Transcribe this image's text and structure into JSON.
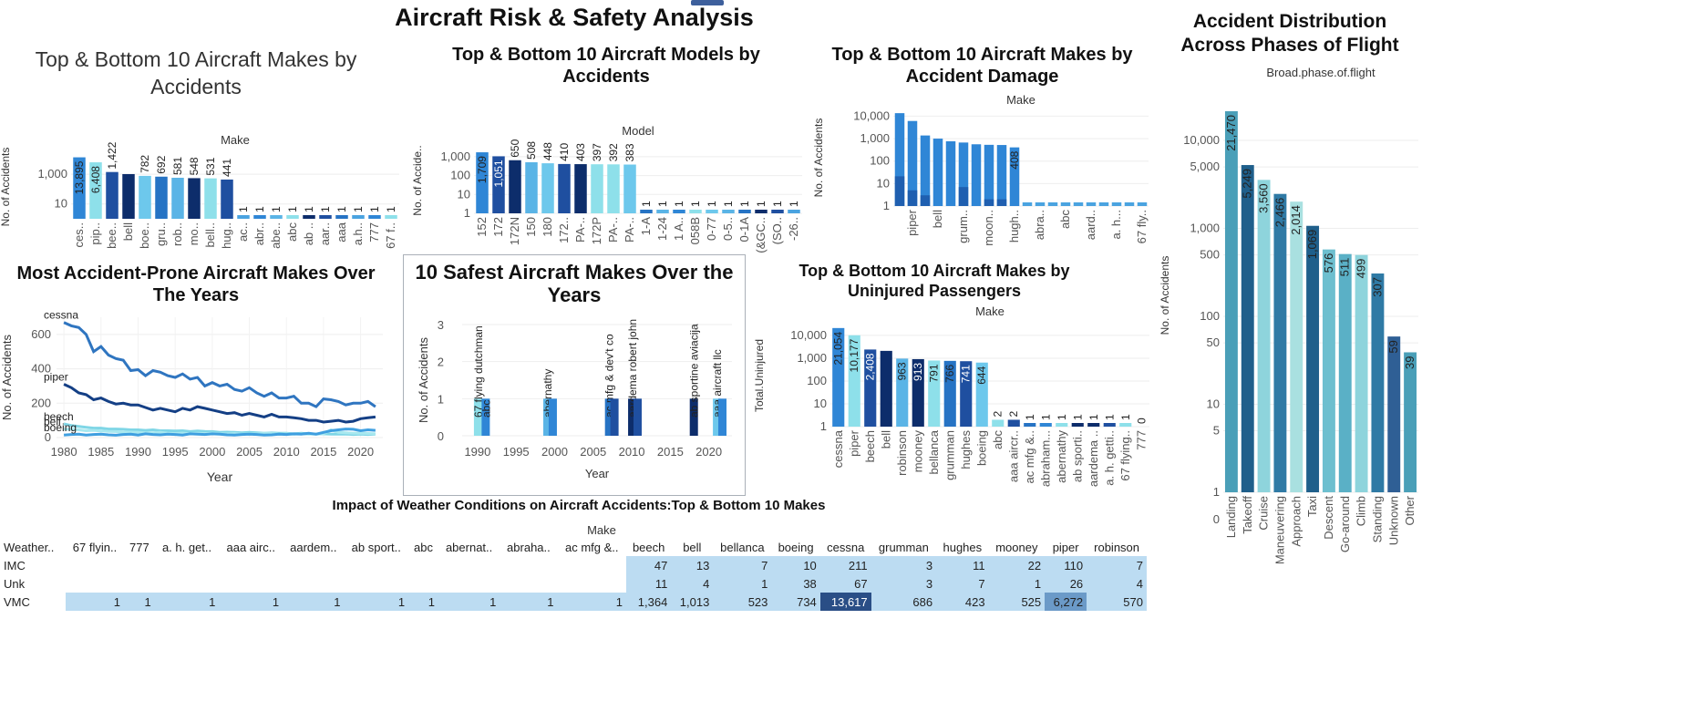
{
  "dashboard_title": "Aircraft Risk & Safety Analysis",
  "charts": {
    "makes_accidents": {
      "title": "Top &  Bottom 10 Aircraft Makes by Accidents",
      "axis_header": "Make",
      "ylabel": "No. of Accidents",
      "yticks": [
        "10",
        "1,000"
      ],
      "color_a": "#2f86d6",
      "color_b": "#0d2d6b",
      "color_c": "#8ee0ea"
    },
    "models_accidents": {
      "title": "Top & Bottom  10 Aircraft Models by Accidents",
      "axis_header": "Model",
      "ylabel": "No. of Accide..",
      "yticks": [
        "1",
        "10",
        "100",
        "1,000"
      ]
    },
    "makes_damage": {
      "title": "Top & Bottom 10 Aircraft Makes by Accident Damage",
      "axis_header": "Make",
      "ylabel": "No. of Accidents",
      "yticks": [
        "1",
        "10",
        "100",
        "1,000",
        "10,000"
      ]
    },
    "phases": {
      "title_line1": "Accident Distribution",
      "title_line2": "Across Phases of Flight",
      "axis_header": "Broad.phase.of.flight",
      "ylabel": "No. of Accidents",
      "yticks": [
        "0",
        "1",
        "5",
        "10",
        "50",
        "100",
        "500",
        "1,000",
        "5,000",
        "10,000"
      ]
    },
    "prone_years": {
      "title": "Most Accident-Prone Aircraft Makes Over  The Years",
      "ylabel": "No. of Accidents",
      "xlabel": "Year",
      "yticks": [
        "0",
        "200",
        "400",
        "600"
      ],
      "xticks": [
        "1980",
        "1985",
        "1990",
        "1995",
        "2000",
        "2005",
        "2010",
        "2015",
        "2020"
      ]
    },
    "safest_years": {
      "title": "10 Safest Aircraft Makes Over the Years",
      "ylabel": "No. of Accidents",
      "xlabel": "Year",
      "yticks": [
        "0",
        "1",
        "2",
        "3"
      ],
      "xticks": [
        "1990",
        "1995",
        "2000",
        "2005",
        "2010",
        "2015",
        "2020"
      ]
    },
    "uninjured": {
      "title": "Top & Bottom 10 Aircraft Makes by Uninjured Passengers",
      "axis_header": "Make",
      "ylabel": "Total.Uninjured",
      "yticks": [
        "1",
        "10",
        "100",
        "1,000",
        "10,000"
      ]
    },
    "weather": {
      "title": "Impact of Weather Conditions on Aircraft Accidents:Top & Bottom 10 Makes",
      "axis_header": "Make",
      "corner": "Weather..",
      "columns": [
        "67 flyin..",
        "777",
        "a. h. get..",
        "aaa airc..",
        "aardem..",
        "ab sport..",
        "abc",
        "abernat..",
        "abraha..",
        "ac mfg &..",
        "beech",
        "bell",
        "bellanca",
        "boeing",
        "cessna",
        "grumman",
        "hughes",
        "mooney",
        "piper",
        "robinson"
      ],
      "rows": [
        {
          "label": "IMC",
          "values": [
            "",
            "",
            "",
            "",
            "",
            "",
            "",
            "",
            "",
            "",
            "47",
            "13",
            "7",
            "10",
            "211",
            "3",
            "11",
            "22",
            "110",
            "7"
          ]
        },
        {
          "label": "Unk",
          "values": [
            "",
            "",
            "",
            "",
            "",
            "",
            "",
            "",
            "",
            "",
            "11",
            "4",
            "1",
            "38",
            "67",
            "3",
            "7",
            "1",
            "26",
            "4"
          ]
        },
        {
          "label": "VMC",
          "values": [
            "1",
            "1",
            "1",
            "1",
            "1",
            "1",
            "1",
            "1",
            "1",
            "1",
            "1,364",
            "1,013",
            "523",
            "734",
            "13,617",
            "686",
            "423",
            "525",
            "6,272",
            "570"
          ]
        }
      ]
    }
  },
  "chart_data": [
    {
      "type": "bar",
      "title": "Top &  Bottom 10 Aircraft Makes by Accidents",
      "xlabel": "Make",
      "ylabel": "No. of Accidents",
      "scale": "log",
      "categories": [
        "ces..",
        "pip..",
        "bee..",
        "bell",
        "boe..",
        "gru..",
        "rob..",
        "mo..",
        "bell..",
        "hug..",
        "ac..",
        "abr..",
        "abe..",
        "abc",
        "ab ..",
        "aar..",
        "aaa",
        "a.h..",
        "777",
        "67 f.."
      ],
      "values": [
        13895,
        6408,
        1422,
        1030,
        782,
        692,
        581,
        548,
        531,
        441,
        1,
        1,
        1,
        1,
        1,
        1,
        1,
        1,
        1,
        1
      ],
      "labels": [
        "13,895",
        "6,408",
        "1,422",
        "",
        "782",
        "692",
        "581",
        "548",
        "531",
        "441",
        "1",
        "1",
        "1",
        "1",
        "1",
        "1",
        "1",
        "1",
        "1",
        "1"
      ],
      "colors": [
        "#2f86d6",
        "#8ee0ea",
        "#1f4fa0",
        "#0d2d6b",
        "#6dc8ec",
        "#2673c4",
        "#5ab4e6",
        "#0d2d6b",
        "#8ee0ea",
        "#1f4fa0",
        "#4aa3e0",
        "#2f86d6",
        "#5ab4e6",
        "#8ee0ea",
        "#0d2d6b",
        "#1f4fa0",
        "#2673c4",
        "#4aa3e0",
        "#2f86d6",
        "#8ee0ea"
      ]
    },
    {
      "type": "bar",
      "title": "Top & Bottom  10 Aircraft Models by Accidents",
      "xlabel": "Model",
      "ylabel": "No. of Accide..",
      "scale": "log",
      "categories": [
        "152",
        "172",
        "172N",
        "150",
        "180",
        "172..",
        "PA-..",
        "172P",
        "PA-..",
        "PA-..",
        "1-A",
        "1-24",
        "1 A..",
        "058B",
        "0-77",
        "0-5..",
        "0-1A",
        "(&GC..",
        "(SO..",
        "-26.."
      ],
      "values": [
        1709,
        1051,
        650,
        508,
        448,
        410,
        403,
        397,
        392,
        383,
        1,
        1,
        1,
        1,
        1,
        1,
        1,
        1,
        1,
        1
      ],
      "labels": [
        "1,709",
        "1,051",
        "650",
        "508",
        "448",
        "410",
        "403",
        "397",
        "392",
        "383",
        "1",
        "1",
        "1",
        "1",
        "1",
        "1",
        "1",
        "1",
        "1",
        "1"
      ],
      "colors": [
        "#2f86d6",
        "#1f4fa0",
        "#0d2d6b",
        "#5ab4e6",
        "#6dc8ec",
        "#1f4fa0",
        "#0d2d6b",
        "#8ee0ea",
        "#8ee0ea",
        "#6dc8ec",
        "#2673c4",
        "#5ab4e6",
        "#2f86d6",
        "#8ee0ea",
        "#6dc8ec",
        "#5ab4e6",
        "#2673c4",
        "#0d2d6b",
        "#1f4fa0",
        "#4aa3e0"
      ]
    },
    {
      "type": "bar",
      "title": "Top & Bottom 10 Aircraft Makes by Accident Damage",
      "xlabel": "Make",
      "ylabel": "No. of Accidents",
      "scale": "log",
      "categories": [
        "",
        "piper",
        "",
        "bell",
        "",
        "grum..",
        "",
        "moon..",
        "",
        "hugh..",
        "",
        "abra..",
        "",
        "abc",
        "",
        "aard..",
        "",
        "a. h...",
        "",
        "67 fly.."
      ],
      "values": [
        13600,
        6100,
        1380,
        1000,
        760,
        670,
        560,
        530,
        520,
        408,
        1,
        1,
        1,
        1,
        1,
        1,
        1,
        1,
        1,
        1
      ],
      "secondary_values": [
        21,
        5,
        3,
        0,
        1,
        7,
        0,
        2,
        2,
        0,
        0,
        0,
        0,
        0,
        0,
        0,
        0,
        0,
        0,
        0
      ],
      "labels": [
        "",
        "",
        "",
        "",
        "",
        "",
        "",
        "",
        "",
        "408",
        "",
        "",
        "",
        "",
        "",
        "",
        "",
        "",
        "",
        ""
      ],
      "colors": [
        "#2f86d6",
        "#2f86d6",
        "#2f86d6",
        "#2f86d6",
        "#2f86d6",
        "#2f86d6",
        "#2f86d6",
        "#2f86d6",
        "#2f86d6",
        "#2f86d6",
        "#4aa3e0",
        "#4aa3e0",
        "#4aa3e0",
        "#4aa3e0",
        "#4aa3e0",
        "#4aa3e0",
        "#4aa3e0",
        "#4aa3e0",
        "#4aa3e0",
        "#4aa3e0"
      ]
    },
    {
      "type": "bar",
      "title": "Accident Distribution Across Phases of Flight",
      "xlabel": "Broad.phase.of.flight",
      "ylabel": "No. of Accidents",
      "scale": "log",
      "categories": [
        "Landing",
        "Takeoff",
        "Cruise",
        "Maneuvering",
        "Approach",
        "Taxi",
        "Descent",
        "Go-around",
        "Climb",
        "Standing",
        "Unknown",
        "Other"
      ],
      "values": [
        21470,
        5249,
        3560,
        2466,
        2014,
        1069,
        576,
        511,
        499,
        307,
        59,
        39
      ],
      "labels": [
        "21,470",
        "5,249",
        "3,560",
        "2,466",
        "2,014",
        "1,069",
        "576",
        "511",
        "499",
        "307",
        "59",
        "39"
      ],
      "colors": [
        "#4a9fb8",
        "#1f5f8b",
        "#8ed4dc",
        "#2f7aa5",
        "#a9e0e0",
        "#1f5f8b",
        "#6dbfcf",
        "#5ab0c6",
        "#8ed4dc",
        "#2f7aa5",
        "#2f5f95",
        "#4a9fb8"
      ]
    },
    {
      "type": "line",
      "title": "Most Accident-Prone Aircraft Makes Over  The Years",
      "xlabel": "Year",
      "ylabel": "No. of Accidents",
      "xlim": [
        1979,
        2023
      ],
      "ylim": [
        0,
        700
      ],
      "x": [
        1980,
        1981,
        1982,
        1983,
        1984,
        1985,
        1986,
        1987,
        1988,
        1989,
        1990,
        1991,
        1992,
        1993,
        1994,
        1995,
        1996,
        1997,
        1998,
        1999,
        2000,
        2001,
        2002,
        2003,
        2004,
        2005,
        2006,
        2007,
        2008,
        2009,
        2010,
        2011,
        2012,
        2013,
        2014,
        2015,
        2016,
        2017,
        2018,
        2019,
        2020,
        2021,
        2022
      ],
      "series": [
        {
          "name": "cessna",
          "color": "#2f75c0",
          "values": [
            670,
            650,
            640,
            600,
            500,
            530,
            480,
            460,
            450,
            390,
            395,
            360,
            390,
            380,
            360,
            350,
            370,
            340,
            350,
            300,
            320,
            300,
            310,
            280,
            270,
            290,
            260,
            240,
            260,
            230,
            230,
            240,
            200,
            200,
            180,
            225,
            220,
            210,
            190,
            200,
            200,
            210,
            180
          ]
        },
        {
          "name": "piper",
          "color": "#143f85",
          "values": [
            310,
            290,
            260,
            250,
            220,
            230,
            210,
            195,
            200,
            190,
            190,
            175,
            160,
            170,
            160,
            150,
            170,
            160,
            180,
            170,
            160,
            150,
            140,
            145,
            130,
            140,
            130,
            120,
            135,
            120,
            120,
            115,
            110,
            100,
            100,
            90,
            95,
            100,
            90,
            95,
            110,
            115,
            120
          ]
        },
        {
          "name": "beech",
          "color": "#7fd6e6",
          "values": [
            80,
            70,
            65,
            60,
            55,
            55,
            50,
            50,
            48,
            45,
            45,
            42,
            45,
            40,
            40,
            38,
            40,
            35,
            38,
            36,
            35,
            30,
            32,
            30,
            28,
            30,
            28,
            25,
            27,
            25,
            25,
            22,
            25,
            22,
            20,
            22,
            20,
            20,
            20,
            18,
            20,
            18,
            20
          ]
        },
        {
          "name": "bell",
          "color": "#a8e8ef",
          "values": [
            50,
            48,
            45,
            40,
            42,
            38,
            36,
            35,
            30,
            32,
            30,
            28,
            27,
            30,
            25,
            24,
            26,
            23,
            25,
            24,
            25,
            23,
            22,
            24,
            20,
            22,
            21,
            25,
            24,
            20,
            22,
            19,
            22,
            20,
            21,
            22,
            45,
            30,
            28,
            25,
            25,
            24,
            22
          ]
        },
        {
          "name": "boeing",
          "color": "#3f9fe0",
          "values": [
            15,
            18,
            20,
            15,
            18,
            20,
            16,
            14,
            18,
            20,
            15,
            22,
            18,
            16,
            20,
            18,
            15,
            22,
            20,
            18,
            22,
            20,
            16,
            15,
            18,
            20,
            18,
            15,
            16,
            20,
            18,
            22,
            20,
            25,
            20,
            30,
            40,
            45,
            50,
            48,
            40,
            45,
            42
          ]
        }
      ]
    },
    {
      "type": "bar",
      "title": "10 Safest Aircraft Makes Over the Years",
      "xlabel": "Year",
      "ylabel": "No. of Accidents",
      "xlim": [
        1988,
        2023
      ],
      "ylim": [
        0,
        3
      ],
      "x": [
        1990,
        1991,
        1999,
        1999.7,
        2007,
        2007.7,
        2010,
        2010.7,
        2018,
        2021,
        2021.7
      ],
      "values": [
        1,
        1,
        1,
        1,
        1,
        1,
        1,
        1,
        1,
        1,
        1
      ],
      "labels": [
        "67 flying dutchman",
        "abc",
        "abernathy",
        "",
        "ac mfg & dev't co",
        "",
        "aardema robert john",
        "",
        "ab sportine aviacija",
        "aaa aircraft llc",
        ""
      ],
      "colors": [
        "#8ee0ea",
        "#2f86d6",
        "#5ab4e6",
        "#2f86d6",
        "#2673c4",
        "#1f4fa0",
        "#0d2d6b",
        "#1f4fa0",
        "#0d2d6b",
        "#6dc8ec",
        "#2f86d6"
      ]
    },
    {
      "type": "bar",
      "title": "Top & Bottom 10 Aircraft Makes by Uninjured Passengers",
      "xlabel": "Make",
      "ylabel": "Total.Uninjured",
      "scale": "log",
      "categories": [
        "cessna",
        "piper",
        "beech",
        "bell",
        "robinson",
        "mooney",
        "bellanca",
        "grumman",
        "hughes",
        "boeing",
        "abc",
        "aaa aircr..",
        "ac mfg &..",
        "abraham...",
        "abernathy",
        "ab sporti..",
        "aardema ..",
        "a. h. getti..",
        "67 flying..",
        "777"
      ],
      "values": [
        21054,
        10177,
        2408,
        2100,
        963,
        913,
        791,
        766,
        741,
        644,
        2,
        2,
        1,
        1,
        1,
        1,
        1,
        1,
        1,
        0
      ],
      "labels": [
        "21,054",
        "10,177",
        "2,408",
        "",
        "963",
        "913",
        "791",
        "766",
        "741",
        "644",
        "2",
        "2",
        "1",
        "1",
        "1",
        "1",
        "1",
        "1",
        "1",
        "0"
      ],
      "colors": [
        "#2f86d6",
        "#8ee0ea",
        "#1f4fa0",
        "#0d2d6b",
        "#5ab4e6",
        "#0d2d6b",
        "#8ee0ea",
        "#2673c4",
        "#1f4fa0",
        "#6dc8ec",
        "#8ee0ea",
        "#1f4fa0",
        "#2673c4",
        "#2f86d6",
        "#8ee0ea",
        "#0d2d6b",
        "#0d2d6b",
        "#1f4fa0",
        "#8ee0ea",
        "#8ee0ea"
      ]
    },
    {
      "type": "heatmap",
      "title": "Impact of Weather Conditions on Aircraft Accidents:Top & Bottom 10 Makes",
      "xlabel": "Make",
      "x": [
        "67 flyin..",
        "777",
        "a. h. get..",
        "aaa airc..",
        "aardem..",
        "ab sport..",
        "abc",
        "abernat..",
        "abraha..",
        "ac mfg &..",
        "beech",
        "bell",
        "bellanca",
        "boeing",
        "cessna",
        "grumman",
        "hughes",
        "mooney",
        "piper",
        "robinson"
      ],
      "y": [
        "IMC",
        "Unk",
        "VMC"
      ],
      "values": [
        [
          0,
          0,
          0,
          0,
          0,
          0,
          0,
          0,
          0,
          0,
          47,
          13,
          7,
          10,
          211,
          3,
          11,
          22,
          110,
          7
        ],
        [
          0,
          0,
          0,
          0,
          0,
          0,
          0,
          0,
          0,
          0,
          11,
          4,
          1,
          38,
          67,
          3,
          7,
          1,
          26,
          4
        ],
        [
          1,
          1,
          1,
          1,
          1,
          1,
          1,
          1,
          1,
          1,
          1364,
          1013,
          523,
          734,
          13617,
          686,
          423,
          525,
          6272,
          570
        ]
      ]
    }
  ]
}
